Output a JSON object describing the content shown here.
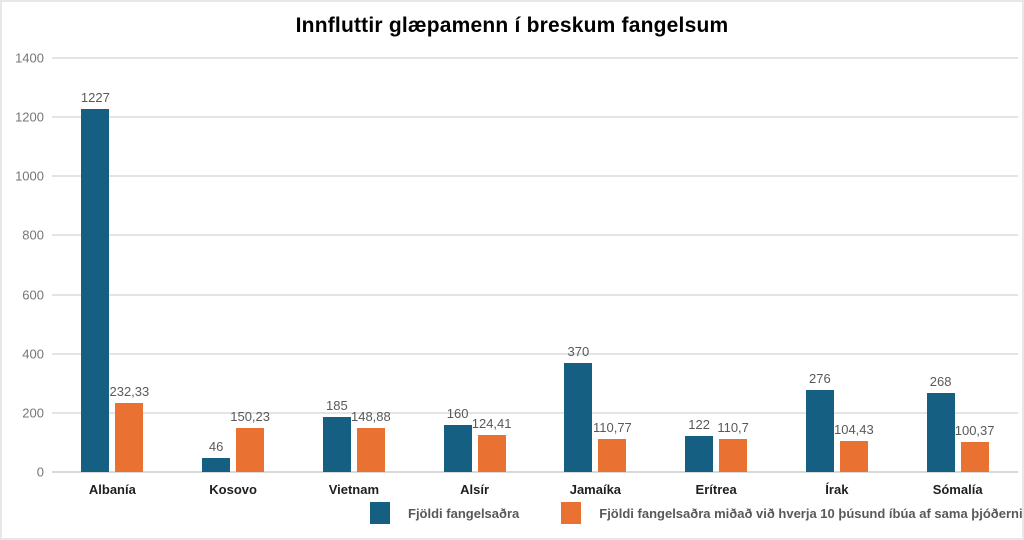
{
  "title": "Innfluttir glæpamenn í breskum fangelsum",
  "colors": {
    "series1": "#156082",
    "series2": "#E97132",
    "gridline": "#e4e4e4",
    "axis_text": "#767676",
    "data_label": "#595959",
    "category_label": "#1f1f1f",
    "frame_border": "#e7e7e7",
    "background": "#ffffff"
  },
  "chart_data": {
    "type": "bar",
    "title": "Innfluttir glæpamenn í breskum fangelsum",
    "categories": [
      "Albanía",
      "Kosovo",
      "Vietnam",
      "Alsír",
      "Jamaíka",
      "Erítrea",
      "Írak",
      "Sómalía"
    ],
    "series": [
      {
        "name": "Fjöldi fangelsaðra",
        "color": "#156082",
        "values": [
          1227,
          46,
          185,
          160,
          370,
          122,
          276,
          268
        ],
        "labels": [
          "1227",
          "46",
          "185",
          "160",
          "370",
          "122",
          "276",
          "268"
        ]
      },
      {
        "name": "Fjöldi fangelsaðra miðað við hverja 10 þúsund íbúa af sama þjóðerni",
        "color": "#E97132",
        "values": [
          232.33,
          150.23,
          148.88,
          124.41,
          110.77,
          110.7,
          104.43,
          100.37
        ],
        "labels": [
          "232,33",
          "150,23",
          "148,88",
          "124,41",
          "110,77",
          "110,7",
          "104,43",
          "100,37"
        ]
      }
    ],
    "xlabel": "",
    "ylabel": "",
    "ylim": [
      0,
      1400
    ],
    "ytick_step": 200,
    "ytick_labels": [
      "0",
      "200",
      "400",
      "600",
      "800",
      "1000",
      "1200",
      "1400"
    ],
    "grid": true,
    "legend_position": "bottom"
  }
}
